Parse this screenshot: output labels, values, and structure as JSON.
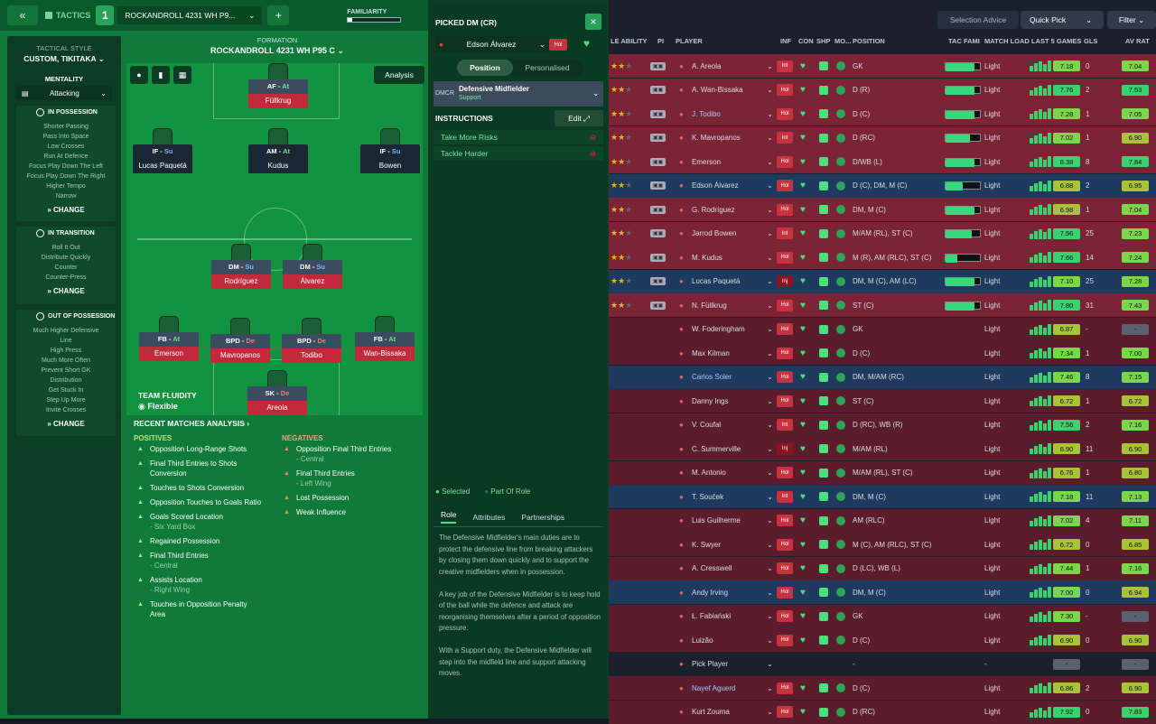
{
  "topbar": {
    "back": "«",
    "tactics_label": "TACTICS",
    "slot": "1",
    "tactic_name": "ROCKANDROLL 4231 WH P9...",
    "add": "+",
    "familiarity_label": "FAMILIARITY"
  },
  "tactical_style": {
    "label": "TACTICAL STYLE",
    "value": "CUSTOM, TIKITAKA"
  },
  "mentality": {
    "label": "MENTALITY",
    "value": "Attacking"
  },
  "in_possession": {
    "title": "IN POSSESSION",
    "items": [
      "Shorter Passing",
      "Pass Into Space",
      "Low Crosses",
      "Run At Defence",
      "Focus Play Down The Left",
      "Focus Play Down The Right",
      "Higher Tempo",
      "Narrow"
    ],
    "change": "CHANGE"
  },
  "in_transition": {
    "title": "IN TRANSITION",
    "items": [
      "Roll It Out",
      "Distribute Quickly",
      "Counter",
      "Counter-Press"
    ],
    "change": "CHANGE"
  },
  "out_of_possession": {
    "title": "OUT OF POSSESSION",
    "items": [
      "Much Higher Defensive",
      "Line",
      "High Press",
      "Much More Often",
      "Prevent Short GK",
      "Distribution",
      "Get Stuck In",
      "Step Up More",
      "Invite Crosses"
    ],
    "change": "CHANGE"
  },
  "formation": {
    "label": "FORMATION",
    "name": "ROCKANDROLL 4231 WH P95 C",
    "analysis": "Analysis"
  },
  "players_pitch": [
    {
      "role": "AF",
      "duty": "At",
      "name": "Füllkrug"
    },
    {
      "role": "IF",
      "duty": "Su",
      "name": "Lucas Paquetá"
    },
    {
      "role": "AM",
      "duty": "At",
      "name": "Kudus"
    },
    {
      "role": "IF",
      "duty": "Su",
      "name": "Bowen"
    },
    {
      "role": "DM",
      "duty": "Su",
      "name": "Rodríguez"
    },
    {
      "role": "DM",
      "duty": "Su",
      "name": "Álvarez"
    },
    {
      "role": "FB",
      "duty": "At",
      "name": "Emerson"
    },
    {
      "role": "BPD",
      "duty": "De",
      "name": "Mavropanos"
    },
    {
      "role": "BPD",
      "duty": "De",
      "name": "Todibo"
    },
    {
      "role": "FB",
      "duty": "At",
      "name": "Wan-Bissaka"
    },
    {
      "role": "SK",
      "duty": "De",
      "name": "Areola"
    }
  ],
  "team_fluidity": {
    "label": "TEAM FLUIDITY",
    "value": "Flexible"
  },
  "recent": {
    "title": "RECENT MATCHES ANALYSIS ›",
    "positives_label": "POSITIVES",
    "negatives_label": "NEGATIVES",
    "positives": [
      [
        "Opposition Long-Range Shots",
        ""
      ],
      [
        "Final Third Entries to Shots",
        "Conversion"
      ],
      [
        "Touches to Shots Conversion",
        ""
      ],
      [
        "Opposition Touches to Goals Ratio",
        ""
      ],
      [
        "Goals Scored Location",
        "- Six Yard Box"
      ],
      [
        "Regained Possession",
        ""
      ],
      [
        "Final Third Entries",
        "- Central"
      ],
      [
        "Assists Location",
        "- Right Wing"
      ],
      [
        "Touches in Opposition Penalty",
        "Area"
      ]
    ],
    "negatives": [
      [
        "Opposition Final Third Entries",
        "- Central"
      ],
      [
        "Final Third Entries",
        "- Left Wing"
      ],
      [
        "Lost Possession",
        ""
      ],
      [
        "Weak Influence",
        ""
      ]
    ]
  },
  "picked": {
    "title": "PICKED DM (CR)",
    "close": "×",
    "player": "Edson Álvarez",
    "status": "Hol",
    "tab_position": "Position",
    "tab_personalised": "Personalised",
    "pos_code": "DMCR",
    "role": "Defensive Midfielder",
    "duty": "Support",
    "instructions_label": "INSTRUCTIONS",
    "edit": "Edit",
    "instructions": [
      "Take More Risks",
      "Tackle Harder"
    ],
    "legend_selected": "Selected",
    "legend_part": "Part Of Role",
    "tabs": [
      "Role",
      "Attributes",
      "Partnerships"
    ],
    "desc1": "The Defensive Midfielder's main duties are to protect the defensive line from breaking attackers by closing them down quickly and to support the creative midfielders when in possession.",
    "desc2": "A key job of the Defensive Midfielder is to keep hold of the ball while the defence and attack are reorganising themselves after a period of opposition pressure.",
    "desc3": "With a Support duty, the Defensive Midfielder will step into the midfield line and support attacking moves."
  },
  "right_top": {
    "selection_advice": "Selection Advice",
    "quick_pick": "Quick Pick",
    "filter": "Filter"
  },
  "headers": [
    "LE ABILITY",
    "PI",
    "PLAYER",
    "INF",
    "CON",
    "SHP",
    "MO...",
    "POSITION",
    "TAC FAMI",
    "MATCH LOAD",
    "LAST 5 GAMES",
    "GLS",
    "AV RAT"
  ],
  "rows": [
    {
      "name": "A. Areola",
      "inf": "Int",
      "pos": "GK",
      "load": "Light",
      "last": "7.18",
      "gls": "0",
      "av": "7.04",
      "cls": "sel",
      "tac": 0.85
    },
    {
      "name": "A. Wan-Bissaka",
      "inf": "Hol",
      "pos": "D (R)",
      "load": "Light",
      "last": "7.76",
      "gls": "2",
      "av": "7.53",
      "cls": "sel",
      "tac": 0.85
    },
    {
      "name": "J. Todibo",
      "inf": "Hol",
      "pos": "D (C)",
      "load": "Light",
      "last": "7.28",
      "gls": "1",
      "av": "7.05",
      "cls": "sel",
      "tac": 0.85
    },
    {
      "name": "K. Mavropanos",
      "inf": "Int",
      "pos": "D (RC)",
      "load": "Light",
      "last": "7.02",
      "gls": "1",
      "av": "6.90",
      "cls": "sel",
      "tac": 0.7
    },
    {
      "name": "Emerson",
      "inf": "Hol",
      "pos": "D/WB (L)",
      "load": "Light",
      "last": "8.38",
      "gls": "8",
      "av": "7.84",
      "cls": "sel",
      "tac": 0.85
    },
    {
      "name": "Edson Álvarez",
      "inf": "Hol",
      "pos": "D (C), DM, M (C)",
      "load": "Light",
      "last": "6.88",
      "gls": "2",
      "av": "6.95",
      "cls": "lent",
      "tac": 0.5
    },
    {
      "name": "G. Rodríguez",
      "inf": "Hol",
      "pos": "DM, M (C)",
      "load": "Light",
      "last": "6.98",
      "gls": "1",
      "av": "7.04",
      "cls": "sel",
      "tac": 0.85
    },
    {
      "name": "Jarrod Bowen",
      "inf": "Int",
      "pos": "M/AM (RL), ST (C)",
      "load": "Light",
      "last": "7.56",
      "gls": "25",
      "av": "7.23",
      "cls": "sel",
      "tac": 0.75
    },
    {
      "name": "M. Kudus",
      "inf": "Hol",
      "pos": "M (R), AM (RLC), ST (C)",
      "load": "Light",
      "last": "7.66",
      "gls": "14",
      "av": "7.24",
      "cls": "sel",
      "tac": 0.35
    },
    {
      "name": "Lucas Paquetá",
      "inf": "Inj",
      "pos": "DM, M (C), AM (LC)",
      "load": "Light",
      "last": "7.10",
      "gls": "25",
      "av": "7.28",
      "cls": "lent",
      "tac": 0.85
    },
    {
      "name": "N. Füllkrug",
      "inf": "Hol",
      "pos": "ST (C)",
      "load": "Light",
      "last": "7.80",
      "gls": "31",
      "av": "7.43",
      "cls": "sel",
      "tac": 0.85
    },
    {
      "name": "W. Foderingham",
      "inf": "Hol",
      "pos": "GK",
      "load": "Light",
      "last": "6.87",
      "gls": "-",
      "av": "-",
      "cls": "dk",
      "tac": 0
    },
    {
      "name": "Max Kilman",
      "inf": "Hol",
      "pos": "D (C)",
      "load": "Light",
      "last": "7.34",
      "gls": "1",
      "av": "7.00",
      "cls": "dk",
      "tac": 0
    },
    {
      "name": "Carlos Soler",
      "inf": "Hol",
      "pos": "DM, M/AM (RC)",
      "load": "Light",
      "last": "7.46",
      "gls": "8",
      "av": "7.15",
      "cls": "lent",
      "tac": 0
    },
    {
      "name": "Danny Ings",
      "inf": "Hol",
      "pos": "ST (C)",
      "load": "Light",
      "last": "6.72",
      "gls": "1",
      "av": "6.72",
      "cls": "dk",
      "tac": 0
    },
    {
      "name": "V. Coufal",
      "inf": "Int",
      "pos": "D (RC), WB (R)",
      "load": "Light",
      "last": "7.56",
      "gls": "2",
      "av": "7.16",
      "cls": "dk",
      "tac": 0
    },
    {
      "name": "C. Summerville",
      "inf": "Inj",
      "pos": "M/AM (RL)",
      "load": "Light",
      "last": "6.90",
      "gls": "11",
      "av": "6.90",
      "cls": "dk",
      "tac": 0
    },
    {
      "name": "M. Antonio",
      "inf": "Hol",
      "pos": "M/AM (RL), ST (C)",
      "load": "Light",
      "last": "6.76",
      "gls": "1",
      "av": "6.80",
      "cls": "dk",
      "tac": 0
    },
    {
      "name": "T. Souček",
      "inf": "Int",
      "pos": "DM, M (C)",
      "load": "Light",
      "last": "7.18",
      "gls": "11",
      "av": "7.13",
      "cls": "lent",
      "tac": 0
    },
    {
      "name": "Luis Guilherme",
      "inf": "Hol",
      "pos": "AM (RLC)",
      "load": "Light",
      "last": "7.02",
      "gls": "4",
      "av": "7.11",
      "cls": "dk",
      "tac": 0
    },
    {
      "name": "K. Swyer",
      "inf": "Hol",
      "pos": "M (C), AM (RLC), ST (C)",
      "load": "Light",
      "last": "6.72",
      "gls": "0",
      "av": "6.85",
      "cls": "dk",
      "tac": 0
    },
    {
      "name": "A. Cresswell",
      "inf": "Hol",
      "pos": "D (LC), WB (L)",
      "load": "Light",
      "last": "7.44",
      "gls": "1",
      "av": "7.16",
      "cls": "dk",
      "tac": 0
    },
    {
      "name": "Andy Irving",
      "inf": "Hol",
      "pos": "DM, M (C)",
      "load": "Light",
      "last": "7.00",
      "gls": "0",
      "av": "6.94",
      "cls": "lent",
      "tac": 0
    },
    {
      "name": "Ł. Fabiański",
      "inf": "Hol",
      "pos": "GK",
      "load": "Light",
      "last": "7.30",
      "gls": "-",
      "av": "-",
      "cls": "dk",
      "tac": 0
    },
    {
      "name": "Luizão",
      "inf": "Hol",
      "pos": "D (C)",
      "load": "Light",
      "last": "6.90",
      "gls": "0",
      "av": "6.90",
      "cls": "dk",
      "tac": 0
    },
    {
      "name": "Pick Player",
      "inf": "",
      "pos": "-",
      "load": "-",
      "last": "-",
      "gls": "",
      "av": "-",
      "cls": "",
      "tac": 0
    },
    {
      "name": "Nayef Aguerd",
      "inf": "Hol",
      "pos": "D (C)",
      "load": "Light",
      "last": "6.86",
      "gls": "2",
      "av": "6.90",
      "cls": "dk",
      "tac": 0
    },
    {
      "name": "Kurt Zouma",
      "inf": "Hol",
      "pos": "D (RC)",
      "load": "Light",
      "last": "7.92",
      "gls": "0",
      "av": "7.83",
      "cls": "dk",
      "tac": 0
    }
  ]
}
